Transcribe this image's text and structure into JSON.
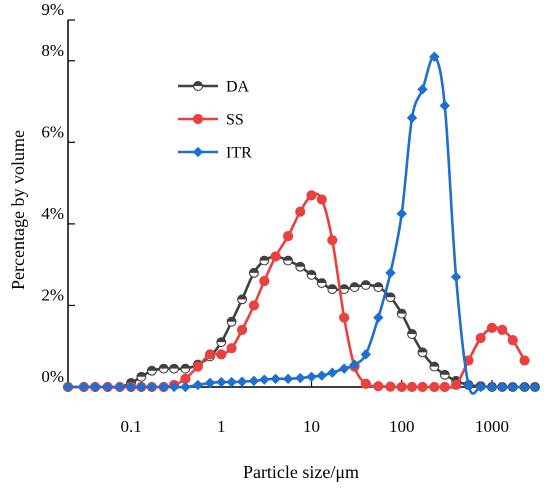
{
  "chart_data": {
    "type": "line",
    "title": "",
    "xlabel": "Particle size/μm",
    "ylabel": "Percentage by volume",
    "x_scale": "log",
    "xlim": [
      0.02,
      3000
    ],
    "ylim": [
      0,
      9
    ],
    "x_ticks": [
      {
        "value": 0.1,
        "label": "0.1"
      },
      {
        "value": 1,
        "label": "1"
      },
      {
        "value": 10,
        "label": "10"
      },
      {
        "value": 100,
        "label": "100"
      },
      {
        "value": 1000,
        "label": "1000"
      }
    ],
    "y_ticks": [
      {
        "value": 0,
        "label": "0%"
      },
      {
        "value": 2,
        "label": "2%"
      },
      {
        "value": 4,
        "label": "4%"
      },
      {
        "value": 6,
        "label": "6%"
      },
      {
        "value": 8,
        "label": "8%"
      },
      {
        "value": 9,
        "label": "9%"
      }
    ],
    "grid": false,
    "legend_position": "top-left",
    "series": [
      {
        "name": "DA",
        "color": "#404040",
        "marker": "half-circle",
        "points": [
          [
            0.02,
            0
          ],
          [
            0.03,
            0
          ],
          [
            0.04,
            0
          ],
          [
            0.055,
            0
          ],
          [
            0.075,
            0
          ],
          [
            0.1,
            0.1
          ],
          [
            0.13,
            0.25
          ],
          [
            0.17,
            0.4
          ],
          [
            0.23,
            0.45
          ],
          [
            0.3,
            0.45
          ],
          [
            0.4,
            0.45
          ],
          [
            0.55,
            0.55
          ],
          [
            0.75,
            0.75
          ],
          [
            1.0,
            1.1
          ],
          [
            1.3,
            1.6
          ],
          [
            1.7,
            2.15
          ],
          [
            2.3,
            2.8
          ],
          [
            3.0,
            3.1
          ],
          [
            4.0,
            3.2
          ],
          [
            5.5,
            3.1
          ],
          [
            7.5,
            2.95
          ],
          [
            10,
            2.75
          ],
          [
            13,
            2.55
          ],
          [
            17,
            2.4
          ],
          [
            23,
            2.4
          ],
          [
            30,
            2.45
          ],
          [
            40,
            2.5
          ],
          [
            55,
            2.45
          ],
          [
            75,
            2.2
          ],
          [
            100,
            1.8
          ],
          [
            130,
            1.3
          ],
          [
            170,
            0.85
          ],
          [
            230,
            0.5
          ],
          [
            300,
            0.3
          ],
          [
            400,
            0.15
          ],
          [
            550,
            0.05
          ],
          [
            750,
            0.02
          ],
          [
            1000,
            0
          ],
          [
            1300,
            0
          ],
          [
            1700,
            0
          ],
          [
            2300,
            0
          ],
          [
            3000,
            0
          ]
        ]
      },
      {
        "name": "SS",
        "color": "#e8413f",
        "marker": "circle",
        "points": [
          [
            0.02,
            0
          ],
          [
            0.03,
            0
          ],
          [
            0.04,
            0
          ],
          [
            0.055,
            0
          ],
          [
            0.075,
            0
          ],
          [
            0.1,
            0
          ],
          [
            0.13,
            0
          ],
          [
            0.17,
            0
          ],
          [
            0.23,
            0
          ],
          [
            0.3,
            0.05
          ],
          [
            0.4,
            0.2
          ],
          [
            0.55,
            0.5
          ],
          [
            0.75,
            0.8
          ],
          [
            1.0,
            0.8
          ],
          [
            1.3,
            0.95
          ],
          [
            1.7,
            1.4
          ],
          [
            2.3,
            2.0
          ],
          [
            3.0,
            2.6
          ],
          [
            4.0,
            3.2
          ],
          [
            5.5,
            3.7
          ],
          [
            7.5,
            4.3
          ],
          [
            10,
            4.7
          ],
          [
            13,
            4.6
          ],
          [
            17,
            3.6
          ],
          [
            23,
            1.7
          ],
          [
            30,
            0.5
          ],
          [
            40,
            0.08
          ],
          [
            55,
            0.02
          ],
          [
            75,
            0.01
          ],
          [
            100,
            0
          ],
          [
            130,
            0
          ],
          [
            170,
            0
          ],
          [
            230,
            0
          ],
          [
            300,
            0
          ],
          [
            400,
            0.05
          ],
          [
            550,
            0.65
          ],
          [
            750,
            1.2
          ],
          [
            1000,
            1.45
          ],
          [
            1300,
            1.4
          ],
          [
            1700,
            1.15
          ],
          [
            2300,
            0.65
          ]
        ]
      },
      {
        "name": "ITR",
        "color": "#1f6fd1",
        "marker": "diamond",
        "points": [
          [
            0.02,
            0
          ],
          [
            0.03,
            0
          ],
          [
            0.04,
            0
          ],
          [
            0.055,
            0
          ],
          [
            0.075,
            0
          ],
          [
            0.1,
            0
          ],
          [
            0.13,
            0
          ],
          [
            0.17,
            0
          ],
          [
            0.23,
            0
          ],
          [
            0.3,
            0
          ],
          [
            0.4,
            0
          ],
          [
            0.55,
            0.05
          ],
          [
            0.75,
            0.1
          ],
          [
            1.0,
            0.12
          ],
          [
            1.3,
            0.12
          ],
          [
            1.7,
            0.13
          ],
          [
            2.3,
            0.15
          ],
          [
            3.0,
            0.18
          ],
          [
            4.0,
            0.2
          ],
          [
            5.5,
            0.2
          ],
          [
            7.5,
            0.22
          ],
          [
            10,
            0.25
          ],
          [
            13,
            0.28
          ],
          [
            17,
            0.35
          ],
          [
            23,
            0.45
          ],
          [
            30,
            0.55
          ],
          [
            40,
            0.8
          ],
          [
            55,
            1.7
          ],
          [
            75,
            2.8
          ],
          [
            100,
            4.25
          ],
          [
            130,
            6.6
          ],
          [
            170,
            7.3
          ],
          [
            230,
            8.1
          ],
          [
            300,
            6.9
          ],
          [
            400,
            2.7
          ],
          [
            550,
            0.05
          ],
          [
            750,
            0
          ],
          [
            1000,
            0
          ],
          [
            1300,
            0
          ],
          [
            1700,
            0
          ],
          [
            2300,
            0
          ],
          [
            3000,
            0
          ]
        ]
      }
    ]
  }
}
